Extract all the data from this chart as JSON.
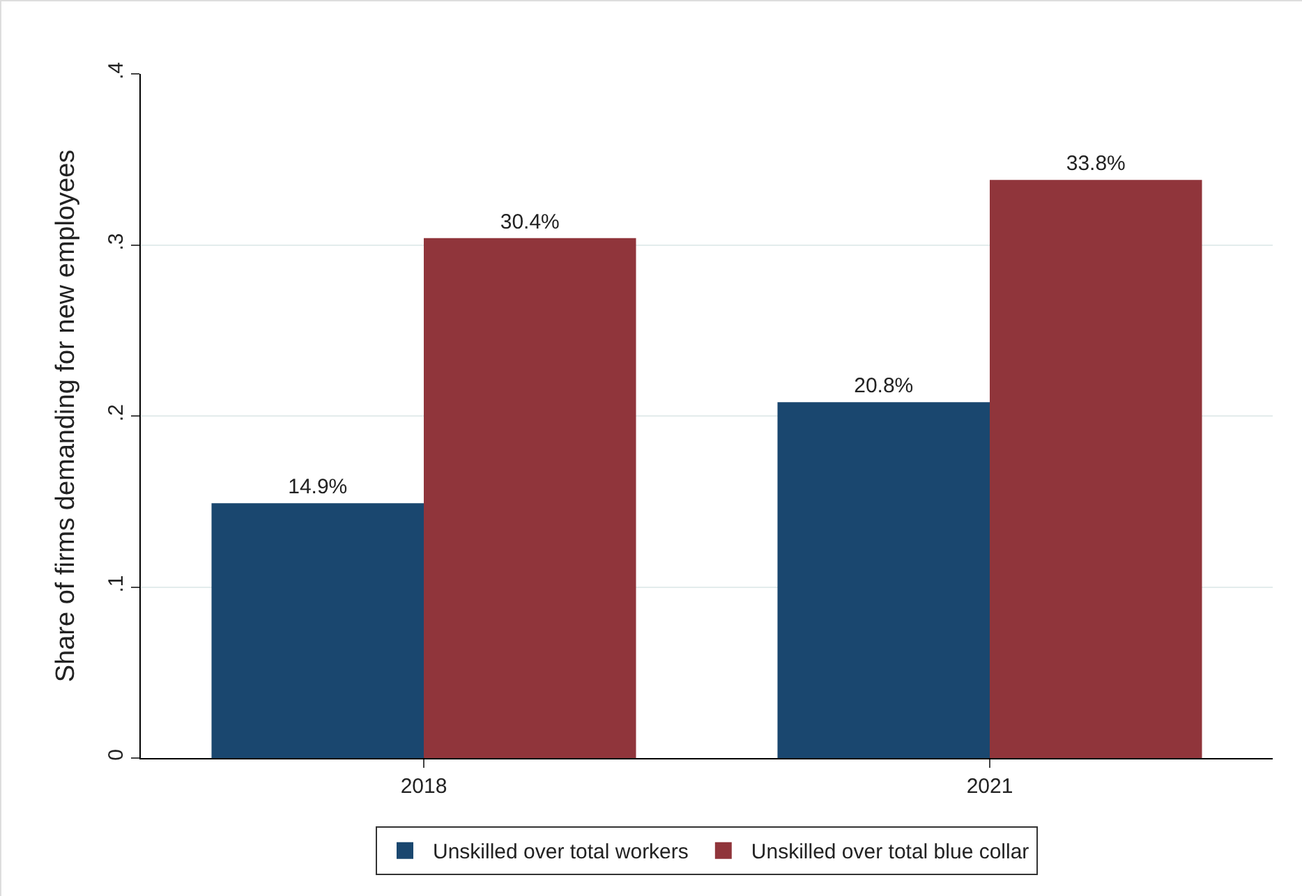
{
  "chart_data": {
    "type": "bar",
    "ylabel": "Share of firms demanding for new employees",
    "categories": [
      "2018",
      "2021"
    ],
    "series": [
      {
        "name": "Unskilled over total workers",
        "color": "#1a476f",
        "values": [
          0.149,
          0.208
        ],
        "value_labels": [
          "14.9%",
          "20.8%"
        ]
      },
      {
        "name": "Unskilled over total blue collar",
        "color": "#90353b",
        "values": [
          0.304,
          0.338
        ],
        "value_labels": [
          "30.4%",
          "33.8%"
        ]
      }
    ],
    "ylim": [
      0,
      0.4
    ],
    "yticks": [
      0,
      {
        "value": 0.1,
        "label": ".1"
      },
      {
        "value": 0.2,
        "label": ".2"
      },
      {
        "value": 0.3,
        "label": ".3"
      },
      {
        "value": 0.4,
        "label": ".4"
      }
    ],
    "grid": "y",
    "legend": "bottom"
  }
}
